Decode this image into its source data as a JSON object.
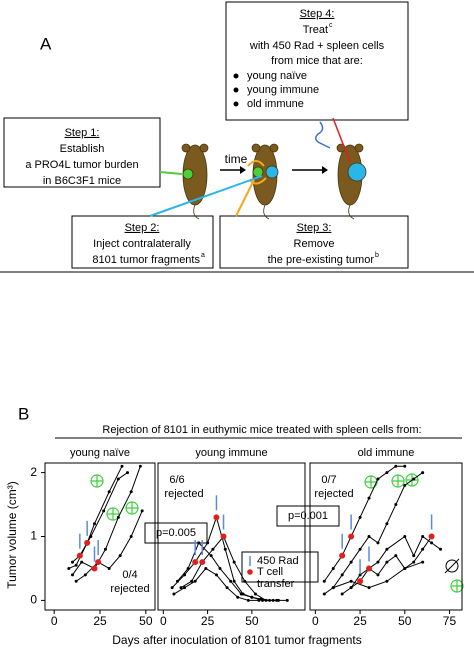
{
  "panel_a": {
    "label": "A",
    "time": "time",
    "step1": {
      "heading": "Step 1:",
      "lines": [
        "Establish",
        "a PRO4L tumor burden",
        "in B6C3F1 mice"
      ]
    },
    "step2": {
      "heading": "Step 2:",
      "lines": [
        "Inject contralaterally",
        "8101 tumor fragments"
      ],
      "sup": "a"
    },
    "step3": {
      "heading": "Step 3:",
      "lines": [
        "Remove",
        "the pre-existing tumor"
      ],
      "sup": "b"
    },
    "step4": {
      "heading": "Step 4:",
      "lines": [
        "Treat",
        "with 450 Rad + spleen cells",
        "from mice that are:"
      ],
      "sup": "c",
      "bullets": [
        "young naïve",
        "young immune",
        "old immune"
      ]
    }
  },
  "chart_data": {
    "type": "line",
    "label": "B",
    "title": "Rejection of 8101 in euthymic mice treated with spleen cells from:",
    "xlabel": "Days after inoculation of 8101 tumor fragments",
    "ylabel": "Tumor volume (cm³)",
    "ylim": [
      -0.15,
      2.15
    ],
    "yticks": [
      0,
      1,
      2
    ],
    "legend": [
      "450 Rad",
      "T cell",
      "transfer"
    ],
    "panels": [
      {
        "title": "young naïve",
        "ratio": "0/4",
        "note": "rejected",
        "xlim": [
          -5,
          55
        ],
        "xticks": [
          0,
          25,
          50
        ],
        "series": [
          {
            "color": "#000000",
            "x": [
              10,
              14,
              20,
              27,
              35,
              40
            ],
            "y": [
              0.6,
              0.7,
              1.0,
              1.4,
              1.9,
              2.0
            ]
          },
          {
            "color": "#000000",
            "x": [
              8,
              12,
              18,
              22,
              30,
              37
            ],
            "y": [
              0.5,
              0.55,
              0.9,
              1.2,
              1.7,
              2.1
            ]
          },
          {
            "color": "#000000",
            "x": [
              10,
              15,
              22,
              28,
              35,
              42,
              47
            ],
            "y": [
              0.4,
              0.6,
              0.5,
              0.8,
              1.3,
              1.7,
              2.1
            ]
          },
          {
            "color": "#000000",
            "x": [
              12,
              17,
              24,
              30,
              36,
              42,
              48
            ],
            "y": [
              0.3,
              0.4,
              0.6,
              0.5,
              0.7,
              1.0,
              1.4
            ]
          }
        ],
        "transfers": {
          "x": [
            14,
            18,
            22,
            24
          ],
          "y": [
            0.7,
            0.9,
            0.5,
            0.6
          ]
        }
      },
      {
        "title": "young immune",
        "ratio": "6/6",
        "note": "rejected",
        "p": "p=0.005",
        "xlim": [
          -3,
          80
        ],
        "xticks": [
          0,
          25,
          50
        ],
        "series": [
          {
            "color": "#000000",
            "x": [
              5,
              12,
              18,
              25,
              30,
              35,
              40,
              45,
              50,
              55,
              60,
              65
            ],
            "y": [
              0.2,
              0.4,
              0.6,
              0.9,
              1.3,
              0.8,
              0.3,
              0.1,
              0.05,
              0.02,
              0,
              0
            ]
          },
          {
            "color": "#000000",
            "x": [
              8,
              14,
              20,
              27,
              32,
              38,
              44,
              50,
              56,
              62
            ],
            "y": [
              0.3,
              0.5,
              0.9,
              0.7,
              0.5,
              0.3,
              0.1,
              0.05,
              0,
              0
            ]
          },
          {
            "color": "#000000",
            "x": [
              10,
              16,
              22,
              28,
              34,
              40,
              46,
              52,
              58,
              64,
              70
            ],
            "y": [
              0.2,
              0.3,
              0.6,
              0.8,
              1.0,
              0.6,
              0.3,
              0.1,
              0,
              0,
              0
            ]
          },
          {
            "color": "#000000",
            "x": [
              6,
              12,
              18,
              24,
              30,
              36,
              42,
              48,
              54
            ],
            "y": [
              0.1,
              0.2,
              0.3,
              0.5,
              0.4,
              0.2,
              0.05,
              0,
              0
            ]
          }
        ],
        "transfers": {
          "x": [
            18,
            22,
            30,
            34
          ],
          "y": [
            0.6,
            0.6,
            1.3,
            1.0
          ]
        }
      },
      {
        "title": "old immune",
        "ratio": "0/7",
        "note": "rejected",
        "p": "p=0.001",
        "xlim": [
          -3,
          82
        ],
        "xticks": [
          0,
          25,
          50,
          75
        ],
        "series": [
          {
            "color": "#000000",
            "x": [
              5,
              10,
              15,
              20,
              25,
              30,
              35,
              40,
              45,
              50
            ],
            "y": [
              0.3,
              0.5,
              0.7,
              1.0,
              1.3,
              1.6,
              1.9,
              2.0,
              2.1,
              2.1
            ]
          },
          {
            "color": "#000000",
            "x": [
              10,
              15,
              20,
              25,
              30,
              35,
              40,
              45,
              50,
              55,
              60
            ],
            "y": [
              0.2,
              0.4,
              0.6,
              0.8,
              1.0,
              0.9,
              1.2,
              1.5,
              1.8,
              1.9,
              2.0
            ]
          },
          {
            "color": "#000000",
            "x": [
              15,
              20,
              25,
              30,
              35,
              40,
              50,
              55,
              60,
              65,
              70
            ],
            "y": [
              0.1,
              0.2,
              0.3,
              0.5,
              0.6,
              0.8,
              1.0,
              0.7,
              1.0,
              0.9,
              0.8
            ]
          },
          {
            "color": "#000000",
            "x": [
              20,
              25,
              30,
              35,
              40,
              45,
              50,
              55,
              60,
              65
            ],
            "y": [
              0.2,
              0.4,
              0.5,
              0.4,
              0.6,
              0.7,
              0.5,
              0.6,
              0.8,
              1.0
            ]
          },
          {
            "color": "#000000",
            "x": [
              5,
              10,
              20,
              30,
              40,
              50,
              60
            ],
            "y": [
              0.1,
              0.2,
              0.3,
              0.2,
              0.3,
              0.5,
              0.6
            ]
          }
        ],
        "transfers": {
          "x": [
            15,
            20,
            25,
            30,
            65
          ],
          "y": [
            0.7,
            1.0,
            0.3,
            0.5,
            1.0
          ]
        }
      }
    ]
  }
}
